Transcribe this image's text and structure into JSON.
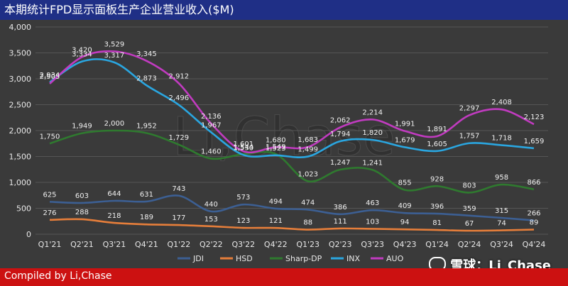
{
  "title": "本期统计FPD显示面板生产企业营业收入($M)",
  "footer": "Compiled by Li,Chase",
  "watermark_text": "雪球：Li_Chase",
  "watermark_bg": "Li,Chase",
  "colors": {
    "title_bar": "#1f2f86",
    "footer_bar": "#cc1111",
    "background": "#3a3a3a"
  },
  "chart_data": {
    "type": "line",
    "categories": [
      "Q1'21",
      "Q2'21",
      "Q3'21",
      "Q4'21",
      "Q1'22",
      "Q2'22",
      "Q3'22",
      "Q4'22",
      "Q1'23",
      "Q2'23",
      "Q3'23",
      "Q4'23",
      "Q1'24",
      "Q2'24",
      "Q3'24",
      "Q4'24"
    ],
    "ylim": [
      0,
      4000
    ],
    "yticks": [
      "0",
      "500",
      "1,000",
      "1,500",
      "2,000",
      "2,500",
      "3,000",
      "3,500",
      "4,000"
    ],
    "grid": true,
    "legend_position": "bottom",
    "series": [
      {
        "name": "JDI",
        "color": "#3c5f93",
        "values": [
          625,
          603,
          644,
          631,
          743,
          440,
          573,
          494,
          474,
          386,
          463,
          409,
          396,
          359,
          315,
          266
        ],
        "labels": [
          "625",
          "603",
          "644",
          "631",
          "743",
          "440",
          "573",
          "494",
          "474",
          "386",
          "463",
          "409",
          "396",
          "359",
          "315",
          "266"
        ]
      },
      {
        "name": "HSD",
        "color": "#e67e3a",
        "values": [
          276,
          288,
          218,
          189,
          177,
          153,
          123,
          121,
          88,
          111,
          103,
          94,
          81,
          67,
          74,
          89
        ],
        "labels": [
          "276",
          "288",
          "218",
          "189",
          "177",
          "153",
          "123",
          "121",
          "88",
          "111",
          "103",
          "94",
          "81",
          "67",
          "74",
          "89"
        ]
      },
      {
        "name": "Sharp-DP",
        "color": "#2f7a2f",
        "values": [
          1750,
          1949,
          2000,
          1952,
          1729,
          1460,
          1544,
          1549,
          1023,
          1247,
          1241,
          855,
          928,
          803,
          958,
          866
        ],
        "labels": [
          "1,750",
          "1,949",
          "2,000",
          "1,952",
          "1,729",
          "1,460",
          "1,544",
          "1,549",
          "1,023",
          "1,247",
          "1,241",
          "855",
          "928",
          "803",
          "958",
          "866"
        ]
      },
      {
        "name": "INX",
        "color": "#2aa6e0",
        "values": [
          2934,
          3334,
          3317,
          2873,
          2496,
          1967,
          1530,
          1523,
          1499,
          1794,
          1820,
          1679,
          1605,
          1757,
          1718,
          1659
        ],
        "labels": [
          "2,934",
          "3,334",
          "3,317",
          "2,873",
          "2,496",
          "1,967",
          "1,530",
          "1,523",
          "1,499",
          "1,794",
          "1,820",
          "1,679",
          "1,605",
          "1,757",
          "1,718",
          "1,659"
        ]
      },
      {
        "name": "AUO",
        "color": "#c13bc0",
        "values": [
          2905,
          3420,
          3529,
          3345,
          2912,
          2136,
          1601,
          1680,
          1683,
          2062,
          2214,
          1991,
          1891,
          2297,
          2408,
          2123
        ],
        "labels": [
          "2,905",
          "3,420",
          "3,529",
          "3,345",
          "2,912",
          "2,136",
          "1,601",
          "1,680",
          "1,683",
          "2,062",
          "2,214",
          "1,991",
          "1,891",
          "2,297",
          "2,408",
          "2,123"
        ]
      }
    ]
  }
}
